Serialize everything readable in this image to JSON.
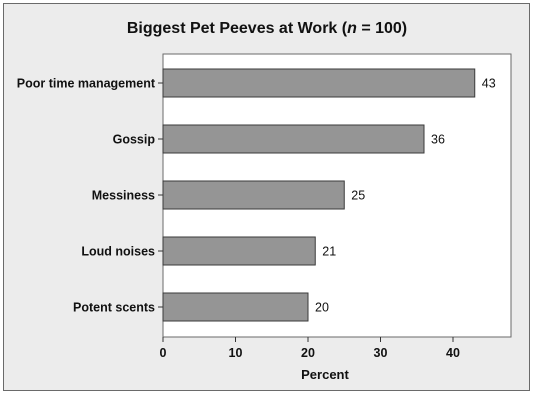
{
  "chart_data": {
    "type": "bar",
    "orientation": "horizontal",
    "title_main": "Biggest Pet Peeves at Work (",
    "title_n": "n",
    "title_tail": " = 100)",
    "categories": [
      "Poor time management",
      "Gossip",
      "Messiness",
      "Loud noises",
      "Potent scents"
    ],
    "values": [
      43,
      36,
      25,
      21,
      20
    ],
    "value_labels": [
      "43",
      "36",
      "25",
      "21",
      "20"
    ],
    "xlabel": "Percent",
    "xlim": [
      0,
      48
    ],
    "xticks": [
      0,
      10,
      20,
      30,
      40
    ],
    "xtick_labels": [
      "0",
      "10",
      "20",
      "30",
      "40"
    ],
    "grid": false,
    "colors": {
      "bar_fill": "#959595",
      "bar_stroke": "#3a3a3a",
      "plot_bg": "#ffffff",
      "frame_bg": "#ececec"
    }
  }
}
